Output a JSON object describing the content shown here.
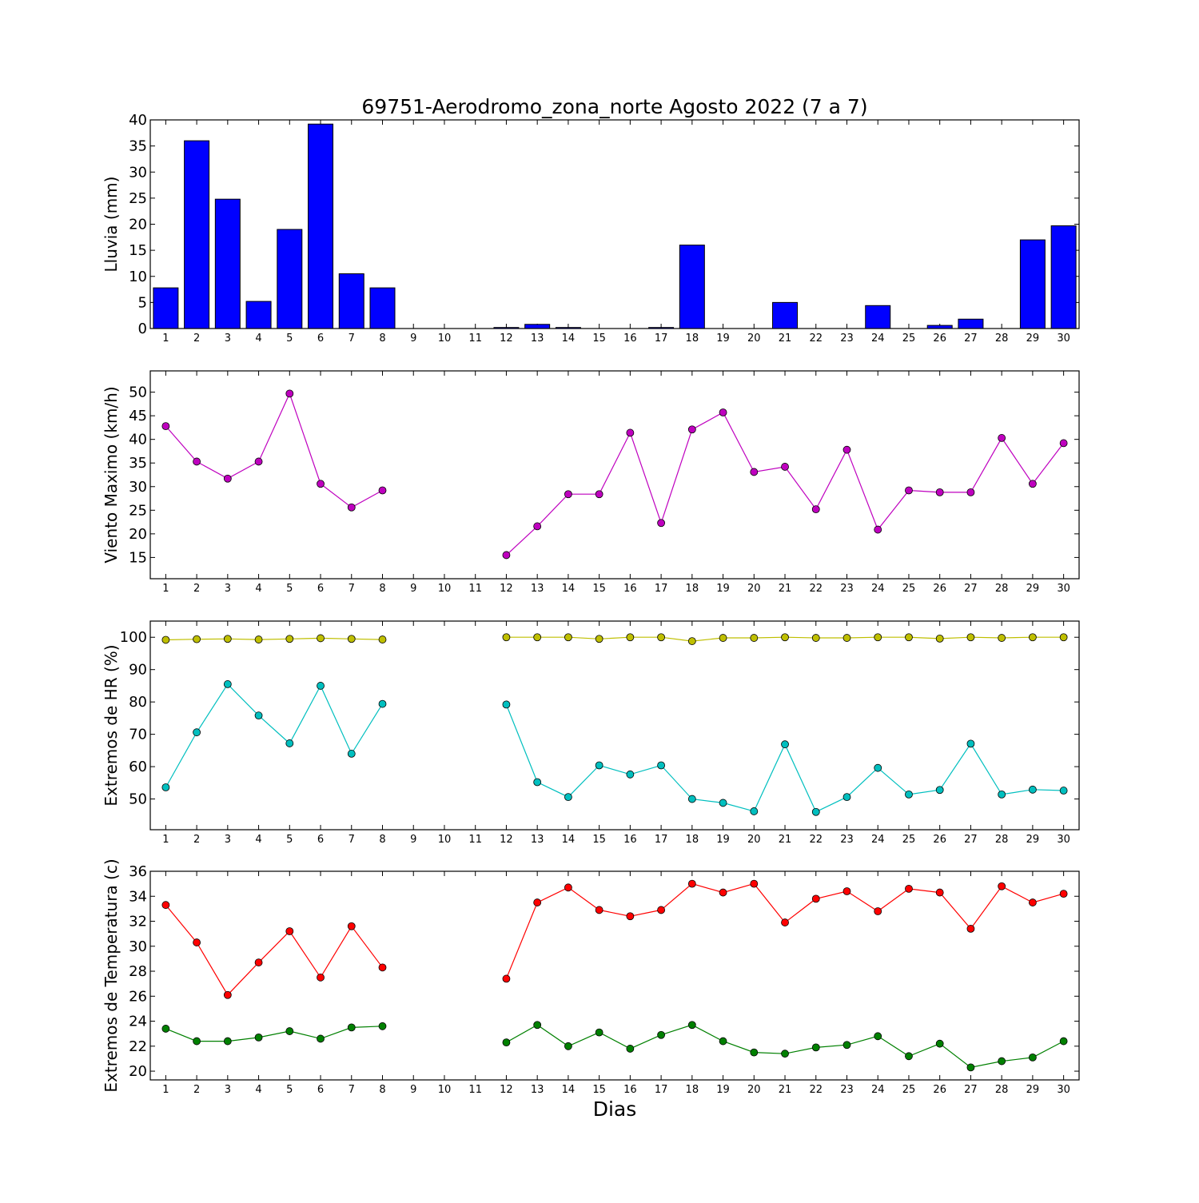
{
  "figure_title": "69751-Aerodromo_zona_norte Agosto 2022  (7 a 7)",
  "x_axis_label": "Dias",
  "chart_data": [
    {
      "type": "bar",
      "ylabel": "Lluvia (mm)",
      "ylim": [
        0,
        40
      ],
      "yticks": [
        0,
        5,
        10,
        15,
        20,
        25,
        30,
        35,
        40
      ],
      "xticks": [
        1,
        2,
        3,
        4,
        5,
        6,
        7,
        8,
        9,
        10,
        11,
        12,
        13,
        14,
        15,
        16,
        17,
        18,
        19,
        20,
        21,
        22,
        23,
        24,
        25,
        26,
        27,
        28,
        29,
        30
      ],
      "bar_color": "#0000ff",
      "series": [
        {
          "x": [
            1,
            2,
            3,
            4,
            5,
            6,
            7,
            8,
            9,
            10,
            11,
            12,
            13,
            14,
            15,
            16,
            17,
            18,
            19,
            20,
            21,
            22,
            23,
            24,
            25,
            26,
            27,
            28,
            29,
            30
          ],
          "values": [
            7.8,
            36,
            24.8,
            5.2,
            19,
            39.2,
            10.5,
            7.8,
            0,
            0,
            0,
            0.2,
            0.8,
            0.2,
            0,
            0,
            0.2,
            16,
            0,
            0,
            5,
            0,
            0,
            4.4,
            0,
            0.6,
            1.8,
            0,
            17,
            19.7
          ]
        }
      ]
    },
    {
      "type": "line",
      "ylabel": "Viento Maximo (km/h)",
      "ylim": [
        10.5,
        54.5
      ],
      "yticks": [
        15,
        20,
        25,
        30,
        35,
        40,
        45,
        50
      ],
      "xticks": [
        1,
        2,
        3,
        4,
        5,
        6,
        7,
        8,
        9,
        10,
        11,
        12,
        13,
        14,
        15,
        16,
        17,
        18,
        19,
        20,
        21,
        22,
        23,
        24,
        25,
        26,
        27,
        28,
        29,
        30
      ],
      "series": [
        {
          "color": "#bf00bf",
          "x": [
            1,
            2,
            3,
            4,
            5,
            6,
            7,
            8,
            12,
            13,
            14,
            15,
            16,
            17,
            18,
            19,
            20,
            21,
            22,
            23,
            24,
            25,
            26,
            27,
            28,
            29,
            30
          ],
          "values": [
            42.8,
            35.3,
            31.7,
            35.3,
            49.7,
            30.6,
            25.6,
            29.2,
            15.5,
            21.6,
            28.4,
            28.4,
            41.4,
            22.3,
            42.1,
            45.7,
            33.1,
            34.2,
            25.2,
            37.8,
            20.9,
            29.2,
            28.8,
            28.8,
            40.3,
            30.6,
            39.2
          ]
        }
      ]
    },
    {
      "type": "line",
      "ylabel": "Extremos de HR (%)",
      "ylim": [
        40.5,
        105
      ],
      "yticks": [
        50,
        60,
        70,
        80,
        90,
        100
      ],
      "xticks": [
        1,
        2,
        3,
        4,
        5,
        6,
        7,
        8,
        9,
        10,
        11,
        12,
        13,
        14,
        15,
        16,
        17,
        18,
        19,
        20,
        21,
        22,
        23,
        24,
        25,
        26,
        27,
        28,
        29,
        30
      ],
      "series": [
        {
          "color": "#bfbf00",
          "x": [
            1,
            2,
            3,
            4,
            5,
            6,
            7,
            8,
            12,
            13,
            14,
            15,
            16,
            17,
            18,
            19,
            20,
            21,
            22,
            23,
            24,
            25,
            26,
            27,
            28,
            29,
            30
          ],
          "values": [
            99.2,
            99.4,
            99.5,
            99.3,
            99.5,
            99.7,
            99.5,
            99.3,
            100,
            100,
            100,
            99.5,
            100,
            100,
            98.8,
            99.8,
            99.8,
            100,
            99.8,
            99.8,
            100,
            100,
            99.6,
            100,
            99.8,
            100,
            100
          ]
        },
        {
          "color": "#00bfbf",
          "x": [
            1,
            2,
            3,
            4,
            5,
            6,
            7,
            8,
            12,
            13,
            14,
            15,
            16,
            17,
            18,
            19,
            20,
            21,
            22,
            23,
            24,
            25,
            26,
            27,
            28,
            29,
            30
          ],
          "values": [
            53.6,
            70.6,
            85.5,
            75.8,
            67.2,
            85,
            64,
            79.4,
            79.2,
            55.2,
            50.6,
            60.4,
            57.6,
            60.4,
            50,
            48.8,
            46.2,
            66.9,
            46,
            50.6,
            59.6,
            51.4,
            52.8,
            67.1,
            51.4,
            52.9,
            52.6
          ]
        }
      ]
    },
    {
      "type": "line",
      "ylabel": "Extremos de Temperatura (c)",
      "ylim": [
        19.3,
        36
      ],
      "yticks": [
        20,
        22,
        24,
        26,
        28,
        30,
        32,
        34,
        36
      ],
      "xticks": [
        1,
        2,
        3,
        4,
        5,
        6,
        7,
        8,
        9,
        10,
        11,
        12,
        13,
        14,
        15,
        16,
        17,
        18,
        19,
        20,
        21,
        22,
        23,
        24,
        25,
        26,
        27,
        28,
        29,
        30
      ],
      "series": [
        {
          "color": "#ff0000",
          "x": [
            1,
            2,
            3,
            4,
            5,
            6,
            7,
            8,
            12,
            13,
            14,
            15,
            16,
            17,
            18,
            19,
            20,
            21,
            22,
            23,
            24,
            25,
            26,
            27,
            28,
            29,
            30
          ],
          "values": [
            33.3,
            30.3,
            26.1,
            28.7,
            31.2,
            27.5,
            31.6,
            28.3,
            27.4,
            33.5,
            34.7,
            32.9,
            32.4,
            32.9,
            35,
            34.3,
            35,
            31.9,
            33.8,
            34.4,
            32.8,
            34.6,
            34.3,
            31.4,
            34.8,
            33.5,
            34.2
          ]
        },
        {
          "color": "#008000",
          "x": [
            1,
            2,
            3,
            4,
            5,
            6,
            7,
            8,
            12,
            13,
            14,
            15,
            16,
            17,
            18,
            19,
            20,
            21,
            22,
            23,
            24,
            25,
            26,
            27,
            28,
            29,
            30
          ],
          "values": [
            23.4,
            22.4,
            22.4,
            22.7,
            23.2,
            22.6,
            23.5,
            23.6,
            22.3,
            23.7,
            22,
            23.1,
            21.8,
            22.9,
            23.7,
            22.4,
            21.5,
            21.4,
            21.9,
            22.1,
            22.8,
            21.2,
            22.2,
            20.3,
            20.8,
            21.1,
            22.4
          ]
        }
      ]
    }
  ]
}
